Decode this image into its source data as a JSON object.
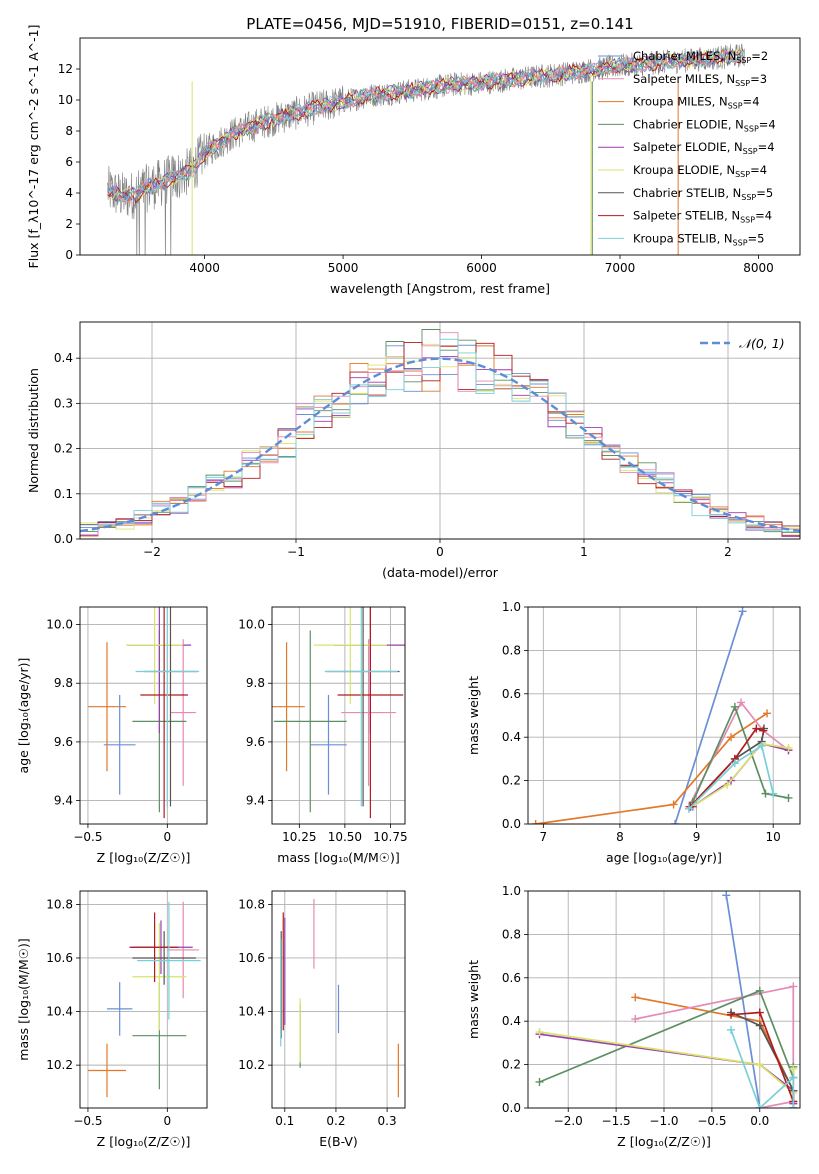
{
  "title": "PLATE=0456, MJD=51910, FIBERID=0151, z=0.141",
  "colors": {
    "Chabrier MILES": "#6a8fd8",
    "Salpeter MILES": "#e58ab5",
    "Kroupa MILES": "#e1782a",
    "Chabrier ELODIE": "#5e8f63",
    "Salpeter ELODIE": "#9a3fb0",
    "Kroupa ELODIE": "#d9e36c",
    "Chabrier STELIB": "#555555",
    "Salpeter STELIB": "#b01c1c",
    "Kroupa STELIB": "#79cfd9",
    "gauss": "#5b8ed6",
    "data": "#7f7f7f"
  },
  "chart_data": [
    {
      "id": "spectrum",
      "type": "line",
      "title": "PLATE=0456, MJD=51910, FIBERID=0151, z=0.141",
      "xlabel": "wavelength [Angstrom, rest frame]",
      "ylabel": "Flux [f_λ10^-17 erg cm^-2 s^-1 A^-1]",
      "xlim": [
        3100,
        8300
      ],
      "ylim": [
        0,
        14
      ],
      "xticks": [
        4000,
        5000,
        6000,
        7000,
        8000
      ],
      "yticks": [
        0,
        2,
        4,
        6,
        8,
        10,
        12
      ],
      "legend_position": "right",
      "continuum": {
        "x": [
          3300,
          3400,
          3500,
          3600,
          3700,
          3800,
          3900,
          4000,
          4200,
          4400,
          4600,
          4800,
          5000,
          5200,
          5500,
          5800,
          6000,
          6300,
          6600,
          7000,
          7400,
          7800,
          7900
        ],
        "y": [
          4.2,
          3.8,
          3.9,
          4.4,
          4.7,
          5.1,
          5.4,
          6.6,
          7.8,
          8.5,
          9.0,
          9.5,
          9.9,
          10.3,
          10.6,
          11.0,
          11.1,
          11.4,
          11.7,
          12.2,
          12.5,
          12.8,
          12.9
        ]
      },
      "series": [
        {
          "name": "Chabrier MILES",
          "n_ssp": "2"
        },
        {
          "name": "Salpeter MILES",
          "n_ssp": "3"
        },
        {
          "name": "Kroupa MILES",
          "n_ssp": "4"
        },
        {
          "name": "Chabrier ELODIE",
          "n_ssp": "4"
        },
        {
          "name": "Salpeter ELODIE",
          "n_ssp": "4"
        },
        {
          "name": "Kroupa ELODIE",
          "n_ssp": "4"
        },
        {
          "name": "Chabrier STELIB",
          "n_ssp": "5"
        },
        {
          "name": "Salpeter STELIB",
          "n_ssp": "4"
        },
        {
          "name": "Kroupa STELIB",
          "n_ssp": "5"
        }
      ]
    },
    {
      "id": "residuals",
      "type": "histogram",
      "xlabel": "(data-model)/error",
      "ylabel": "Normed distribution",
      "xlim": [
        -2.5,
        2.5
      ],
      "ylim": [
        0,
        0.48
      ],
      "xticks": [
        -2,
        -1,
        0,
        1,
        2
      ],
      "yticks": [
        0.0,
        0.1,
        0.2,
        0.3,
        0.4
      ],
      "bins": 40,
      "legend": "𝒩(0, 1)",
      "legend_position": "top-right"
    },
    {
      "id": "age-vs-Z",
      "type": "errorbar",
      "xlabel": "Z [log₁₀(Z/Z☉)]",
      "ylabel": "age  [log₁₀(age/yr)]",
      "xlim": [
        -0.55,
        0.25
      ],
      "ylim": [
        9.32,
        10.06
      ],
      "xticks": [
        -0.5,
        0.0
      ],
      "yticks": [
        9.4,
        9.6,
        9.8,
        10.0
      ],
      "points": [
        {
          "model": "Kroupa MILES",
          "x": -0.38,
          "xerr": 0.12,
          "y": 9.72,
          "yerr": 0.22
        },
        {
          "model": "Chabrier MILES",
          "x": -0.3,
          "xerr": 0.1,
          "y": 9.59,
          "yerr": 0.17
        },
        {
          "model": "Salpeter MILES",
          "x": 0.1,
          "xerr": 0.08,
          "y": 9.7,
          "yerr": 0.25
        },
        {
          "model": "Chabrier ELODIE",
          "x": -0.05,
          "xerr": 0.17,
          "y": 9.67,
          "yerr": 0.31
        },
        {
          "model": "Salpeter ELODIE",
          "x": -0.05,
          "xerr": 0.2,
          "y": 9.93,
          "yerr": 0.3
        },
        {
          "model": "Kroupa ELODIE",
          "x": -0.08,
          "xerr": 0.18,
          "y": 9.93,
          "yerr": 0.2
        },
        {
          "model": "Chabrier STELIB",
          "x": 0.02,
          "xerr": 0.17,
          "y": 9.84,
          "yerr": 0.46
        },
        {
          "model": "Salpeter STELIB",
          "x": -0.02,
          "xerr": 0.15,
          "y": 9.76,
          "yerr": 0.42
        },
        {
          "model": "Kroupa STELIB",
          "x": 0.0,
          "xerr": 0.2,
          "y": 9.84,
          "yerr": 0.46
        }
      ]
    },
    {
      "id": "age-vs-mass",
      "type": "errorbar",
      "xlabel": "mass [log₁₀(M/M☉)]",
      "ylabel": "",
      "xlim": [
        10.1,
        10.83
      ],
      "ylim": [
        9.32,
        10.06
      ],
      "xticks": [
        10.25,
        10.5,
        10.75
      ],
      "xticklabels": [
        "10.25",
        "10.50",
        "10.75"
      ],
      "yticks": [
        9.4,
        9.6,
        9.8,
        10.0
      ],
      "points": [
        {
          "model": "Kroupa MILES",
          "x": 10.18,
          "xerr": 0.1,
          "y": 9.72,
          "yerr": 0.22
        },
        {
          "model": "Chabrier MILES",
          "x": 10.41,
          "xerr": 0.1,
          "y": 9.59,
          "yerr": 0.17
        },
        {
          "model": "Salpeter MILES",
          "x": 10.63,
          "xerr": 0.15,
          "y": 9.7,
          "yerr": 0.25
        },
        {
          "model": "Chabrier ELODIE",
          "x": 10.31,
          "xerr": 0.2,
          "y": 9.67,
          "yerr": 0.31
        },
        {
          "model": "Salpeter ELODIE",
          "x": 10.64,
          "xerr": 0.2,
          "y": 9.93,
          "yerr": 0.3
        },
        {
          "model": "Kroupa ELODIE",
          "x": 10.53,
          "xerr": 0.2,
          "y": 9.93,
          "yerr": 0.2
        },
        {
          "model": "Chabrier STELIB",
          "x": 10.6,
          "xerr": 0.2,
          "y": 9.84,
          "yerr": 0.46
        },
        {
          "model": "Salpeter STELIB",
          "x": 10.64,
          "xerr": 0.18,
          "y": 9.76,
          "yerr": 0.42
        },
        {
          "model": "Kroupa STELIB",
          "x": 10.59,
          "xerr": 0.2,
          "y": 9.84,
          "yerr": 0.46
        }
      ]
    },
    {
      "id": "weight-vs-age",
      "type": "line",
      "xlabel": "age  [log₁₀(age/yr)]",
      "ylabel": "mass weight",
      "xlim": [
        6.8,
        10.35
      ],
      "ylim": [
        0,
        1
      ],
      "xticks": [
        7,
        8,
        9,
        10
      ],
      "yticks": [
        0.0,
        0.2,
        0.4,
        0.6,
        0.8,
        1.0
      ],
      "series": [
        {
          "name": "Chabrier MILES",
          "x": [
            8.72,
            9.6
          ],
          "y": [
            0.0,
            0.98
          ]
        },
        {
          "name": "Kroupa MILES",
          "x": [
            6.9,
            8.7,
            9.45,
            9.92
          ],
          "y": [
            0.0,
            0.09,
            0.4,
            0.51
          ]
        },
        {
          "name": "Salpeter MILES",
          "x": [
            8.9,
            9.58,
            9.87,
            10.2
          ],
          "y": [
            0.08,
            0.56,
            0.43,
            0.34
          ]
        },
        {
          "name": "Chabrier ELODIE",
          "x": [
            8.95,
            9.5,
            9.9,
            10.2
          ],
          "y": [
            0.1,
            0.54,
            0.14,
            0.12
          ]
        },
        {
          "name": "Salpeter ELODIE",
          "x": [
            8.95,
            9.45,
            9.85,
            10.2
          ],
          "y": [
            0.08,
            0.2,
            0.37,
            0.34
          ]
        },
        {
          "name": "Kroupa ELODIE",
          "x": [
            8.9,
            9.4,
            9.85,
            10.2
          ],
          "y": [
            0.07,
            0.18,
            0.37,
            0.35
          ]
        },
        {
          "name": "Chabrier STELIB",
          "x": [
            8.92,
            9.5,
            9.85,
            9.88
          ],
          "y": [
            0.08,
            0.3,
            0.38,
            0.44
          ]
        },
        {
          "name": "Salpeter STELIB",
          "x": [
            8.92,
            9.5,
            9.78,
            9.87
          ],
          "y": [
            0.08,
            0.3,
            0.44,
            0.43
          ]
        },
        {
          "name": "Kroupa STELIB",
          "x": [
            8.9,
            9.5,
            9.85,
            10.0
          ],
          "y": [
            0.07,
            0.28,
            0.36,
            0.14
          ]
        }
      ]
    },
    {
      "id": "mass-vs-Z",
      "type": "errorbar",
      "xlabel": "Z [log₁₀(Z/Z☉)]",
      "ylabel": "mass [log₁₀(M/M☉)]",
      "xlim": [
        -0.55,
        0.25
      ],
      "ylim": [
        10.04,
        10.85
      ],
      "xticks": [
        -0.5,
        0.0
      ],
      "yticks": [
        10.2,
        10.4,
        10.6,
        10.8
      ],
      "points": [
        {
          "model": "Kroupa MILES",
          "x": -0.38,
          "xerr": 0.12,
          "y": 10.18,
          "yerr": 0.1
        },
        {
          "model": "Chabrier MILES",
          "x": -0.3,
          "xerr": 0.08,
          "y": 10.41,
          "yerr": 0.1
        },
        {
          "model": "Salpeter MILES",
          "x": 0.1,
          "xerr": 0.1,
          "y": 10.63,
          "yerr": 0.18
        },
        {
          "model": "Chabrier ELODIE",
          "x": -0.05,
          "xerr": 0.17,
          "y": 10.31,
          "yerr": 0.2
        },
        {
          "model": "Salpeter ELODIE",
          "x": -0.04,
          "xerr": 0.2,
          "y": 10.64,
          "yerr": 0.1
        },
        {
          "model": "Kroupa ELODIE",
          "x": -0.05,
          "xerr": 0.17,
          "y": 10.53,
          "yerr": 0.2
        },
        {
          "model": "Chabrier STELIB",
          "x": -0.02,
          "xerr": 0.2,
          "y": 10.6,
          "yerr": 0.1
        },
        {
          "model": "Salpeter STELIB",
          "x": -0.08,
          "xerr": 0.15,
          "y": 10.64,
          "yerr": 0.13
        },
        {
          "model": "Kroupa STELIB",
          "x": 0.01,
          "xerr": 0.2,
          "y": 10.59,
          "yerr": 0.22
        }
      ]
    },
    {
      "id": "mass-vs-ebv",
      "type": "errorbar",
      "xlabel": "E(B-V)",
      "ylabel": "",
      "xlim": [
        0.075,
        0.335
      ],
      "ylim": [
        10.04,
        10.85
      ],
      "xticks": [
        0.1,
        0.2,
        0.3
      ],
      "yticks": [
        10.2,
        10.4,
        10.6,
        10.8
      ],
      "points": [
        {
          "model": "Kroupa MILES",
          "x": 0.322,
          "y": 10.18,
          "yerr": 0.1
        },
        {
          "model": "Chabrier MILES",
          "x": 0.205,
          "y": 10.41,
          "yerr": 0.09
        },
        {
          "model": "Salpeter MILES",
          "x": 0.157,
          "y": 10.69,
          "yerr": 0.13
        },
        {
          "model": "Chabrier ELODIE",
          "x": 0.13,
          "y": 10.31,
          "yerr": 0.12
        },
        {
          "model": "Salpeter ELODIE",
          "x": 0.1,
          "y": 10.55,
          "yerr": 0.2
        },
        {
          "model": "Kroupa ELODIE",
          "x": 0.13,
          "y": 10.33,
          "yerr": 0.12
        },
        {
          "model": "Chabrier STELIB",
          "x": 0.093,
          "y": 10.5,
          "yerr": 0.2
        },
        {
          "model": "Salpeter STELIB",
          "x": 0.097,
          "y": 10.55,
          "yerr": 0.22
        },
        {
          "model": "Kroupa STELIB",
          "x": 0.092,
          "y": 10.47,
          "yerr": 0.2
        }
      ]
    },
    {
      "id": "weight-vs-Z",
      "type": "line",
      "xlabel": "Z [log₁₀(Z/Z☉)]",
      "ylabel": "mass weight",
      "xlim": [
        -2.42,
        0.42
      ],
      "ylim": [
        0,
        1
      ],
      "xticks": [
        -2.0,
        -1.5,
        -1.0,
        -0.5,
        0.0
      ],
      "xticklabels": [
        "−2.0",
        "−1.5",
        "−1.0",
        "−0.5",
        "0.0"
      ],
      "yticks": [
        0.0,
        0.2,
        0.4,
        0.6,
        0.8,
        1.0
      ],
      "series": [
        {
          "name": "Chabrier MILES",
          "x": [
            -0.35,
            0.0
          ],
          "y": [
            0.98,
            0.0
          ]
        },
        {
          "name": "Kroupa MILES",
          "x": [
            -1.3,
            0.0,
            0.35,
            0.35
          ],
          "y": [
            0.51,
            0.4,
            0.08,
            0.0
          ]
        },
        {
          "name": "Salpeter MILES",
          "x": [
            -1.3,
            0.35,
            0.35,
            0.0
          ],
          "y": [
            0.41,
            0.56,
            0.03,
            0.0
          ]
        },
        {
          "name": "Chabrier ELODIE",
          "x": [
            -2.3,
            0.0,
            0.35,
            0.35
          ],
          "y": [
            0.12,
            0.54,
            0.14,
            0.19
          ]
        },
        {
          "name": "Salpeter ELODIE",
          "x": [
            -2.3,
            0.0,
            0.35,
            0.35
          ],
          "y": [
            0.34,
            0.2,
            0.08,
            0.02
          ]
        },
        {
          "name": "Kroupa ELODIE",
          "x": [
            -2.3,
            0.0,
            0.35,
            0.35
          ],
          "y": [
            0.35,
            0.2,
            0.07,
            0.18
          ]
        },
        {
          "name": "Chabrier STELIB",
          "x": [
            -0.3,
            0.0,
            0.35,
            0.35
          ],
          "y": [
            0.44,
            0.38,
            0.08,
            0.0
          ]
        },
        {
          "name": "Salpeter STELIB",
          "x": [
            -0.3,
            0.0,
            0.35
          ],
          "y": [
            0.43,
            0.44,
            0.03
          ]
        },
        {
          "name": "Kroupa STELIB",
          "x": [
            -0.3,
            0.0,
            0.35,
            0.35
          ],
          "y": [
            0.36,
            0.0,
            0.14,
            0.0
          ]
        }
      ]
    }
  ]
}
